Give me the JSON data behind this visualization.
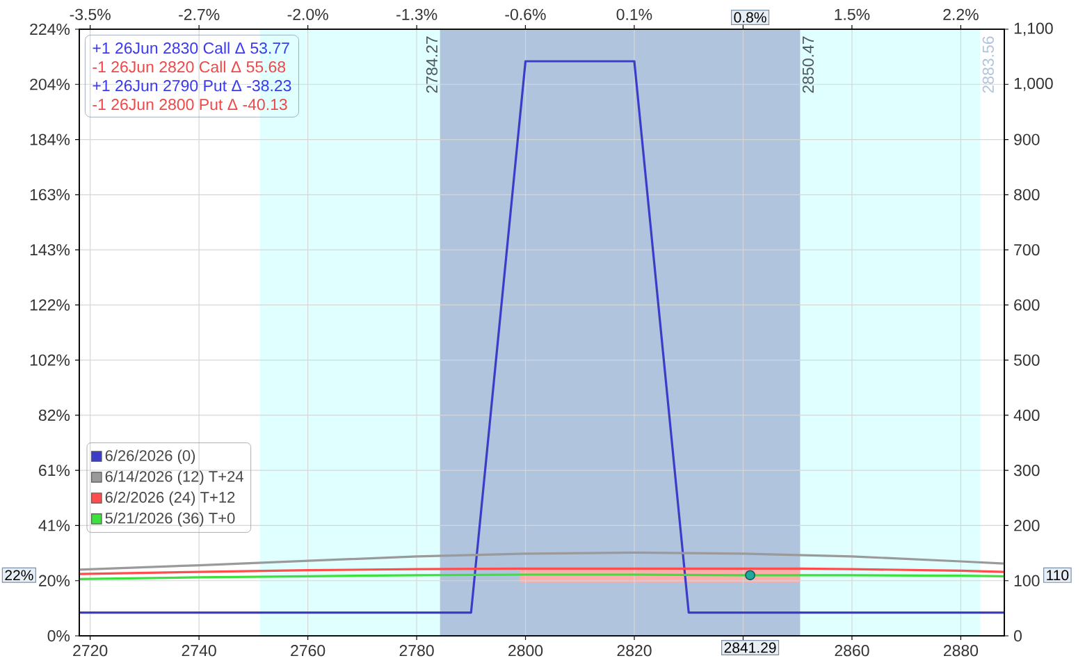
{
  "chart_data": {
    "type": "line",
    "xlim": [
      2718,
      2888
    ],
    "xticks": [
      2720,
      2740,
      2760,
      2780,
      2800,
      2820,
      {
        "value": 2840,
        "label": null
      },
      2860,
      2880
    ],
    "x2lim": [
      -3.527,
      2.507
    ],
    "x2ticks": [
      {
        "value": -3.456,
        "label": "-3.5%"
      },
      {
        "value": -2.746,
        "label": "-2.7%"
      },
      {
        "value": -2.036,
        "label": "-2.0%"
      },
      {
        "value": -1.326,
        "label": "-1.3%"
      },
      {
        "value": -0.617,
        "label": "-0.6%"
      },
      {
        "value": 0.093,
        "label": "0.1%"
      },
      {
        "value": 0.803,
        "label": null
      },
      {
        "value": 1.513,
        "label": "1.5%"
      },
      {
        "value": 2.223,
        "label": "2.2%"
      }
    ],
    "ylim": [
      0,
      224.4
    ],
    "yticks": [
      {
        "value": 0,
        "label": "0%"
      },
      {
        "value": 20.4,
        "label": "20%"
      },
      {
        "value": 40.8,
        "label": "41%"
      },
      {
        "value": 61.2,
        "label": "61%"
      },
      {
        "value": 81.6,
        "label": "82%"
      },
      {
        "value": 102,
        "label": "102%"
      },
      {
        "value": 122.4,
        "label": "122%"
      },
      {
        "value": 142.8,
        "label": "143%"
      },
      {
        "value": 163.2,
        "label": "163%"
      },
      {
        "value": 183.6,
        "label": "184%"
      },
      {
        "value": 204,
        "label": "204%"
      },
      {
        "value": 224.4,
        "label": "224%"
      }
    ],
    "y2lim": [
      0,
      1100
    ],
    "y2ticks": [
      0,
      100,
      200,
      300,
      400,
      500,
      600,
      700,
      800,
      900,
      {
        "value": 1000,
        "label": "1,000"
      },
      {
        "value": 1100,
        "label": "1,100"
      }
    ],
    "grid": true,
    "legend": "bottom left",
    "bands": [
      {
        "axis": "x",
        "from": 2751.18,
        "to": 2883.56,
        "color": "#e0ffff"
      },
      {
        "axis": "x",
        "from": 2784.27,
        "to": 2850.47,
        "color": "#b0c4de"
      }
    ],
    "series": [
      {
        "name": "6/26/2026 (0)",
        "color": "#3c3cc8",
        "axis": "y2",
        "x": [
          2718,
          2790,
          2800,
          2820,
          2830,
          2888
        ],
        "values": [
          42,
          42,
          1042,
          1042,
          42,
          42
        ]
      },
      {
        "name": "6/14/2026 (12) T+24",
        "color": "#9a9a9a",
        "axis": "y2",
        "x": [
          2718,
          2740,
          2760,
          2780,
          2800,
          2820,
          2840,
          2860,
          2880,
          2888
        ],
        "values": [
          120,
          128,
          136,
          144,
          149,
          151,
          149,
          144,
          135,
          131
        ]
      },
      {
        "name": "6/2/2026 (24) T+12",
        "color": "#ff4c4c",
        "axis": "y2",
        "x": [
          2718,
          2740,
          2760,
          2780,
          2799,
          2820,
          2840,
          2850.47,
          2860,
          2880,
          2888
        ],
        "values": [
          112,
          116,
          119,
          121,
          122,
          122,
          122,
          122,
          121,
          118,
          116
        ],
        "lower": [
          null,
          null,
          null,
          null,
          97,
          97,
          97,
          97,
          null,
          null,
          null
        ],
        "upper": [
          null,
          null,
          null,
          null,
          125,
          125,
          125,
          125,
          null,
          null,
          null
        ]
      },
      {
        "name": "5/21/2026 (36) T+0",
        "color": "#3ee03e",
        "axis": "y2",
        "x": [
          2718,
          2740,
          2760,
          2780,
          2800,
          2820,
          2840,
          2860,
          2880,
          2888
        ],
        "values": [
          103,
          106,
          108,
          110,
          111,
          111,
          110,
          110,
          109,
          108
        ]
      },
      {
        "type": "scatter",
        "color": "#1fa89c",
        "axis": "y2",
        "marker": "circle",
        "x": [
          2841.29
        ],
        "values": [
          110
        ]
      }
    ],
    "annotations": [
      "+1 26Jun 2830 Call Δ 53.77",
      "-1 26Jun 2820 Call Δ 55.68",
      "+1 26Jun 2790 Put Δ -38.23",
      "-1 26Jun 2800 Put Δ -40.13",
      {
        "text": "2784.27",
        "x": 2784.27
      },
      {
        "text": "2850.47",
        "x": 2850.47
      },
      {
        "text": "2883.56",
        "x": 2883.56
      },
      "2841.29",
      "0.8%",
      "22%",
      "110"
    ]
  }
}
